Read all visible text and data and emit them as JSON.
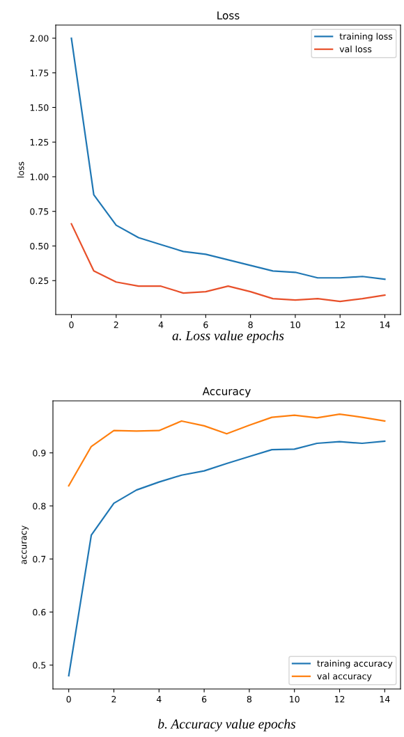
{
  "chart_data": [
    {
      "type": "line",
      "title": "Loss",
      "ylabel": "loss",
      "x": [
        0,
        1,
        2,
        3,
        4,
        5,
        6,
        7,
        8,
        9,
        10,
        11,
        12,
        13,
        14
      ],
      "series": [
        {
          "name": "training loss",
          "color": "#1f77b4",
          "values": [
            2.0,
            0.87,
            0.65,
            0.56,
            0.51,
            0.46,
            0.44,
            0.4,
            0.36,
            0.32,
            0.31,
            0.27,
            0.27,
            0.28,
            0.26
          ]
        },
        {
          "name": "val loss",
          "color": "#e8502a",
          "values": [
            0.66,
            0.32,
            0.24,
            0.21,
            0.21,
            0.16,
            0.17,
            0.21,
            0.17,
            0.12,
            0.11,
            0.12,
            0.1,
            0.12,
            0.145
          ]
        }
      ],
      "xlim": [
        -0.7,
        14.7
      ],
      "xticks": [
        0,
        2,
        4,
        6,
        8,
        10,
        12,
        14
      ],
      "ylim": [
        0.005,
        2.095
      ],
      "yticks": [
        {
          "value": 0.25,
          "label": "0.25"
        },
        {
          "value": 0.5,
          "label": "0.50"
        },
        {
          "value": 0.75,
          "label": "0.75"
        },
        {
          "value": 1.0,
          "label": "1.00"
        },
        {
          "value": 1.25,
          "label": "1.25"
        },
        {
          "value": 1.5,
          "label": "1.50"
        },
        {
          "value": 1.75,
          "label": "1.75"
        },
        {
          "value": 2.0,
          "label": "2.00"
        }
      ],
      "legend": "top right",
      "grid": false,
      "annotations": [
        "a. Loss value epochs"
      ]
    },
    {
      "type": "line",
      "title": "Accuracy",
      "ylabel": "accuracy",
      "x": [
        0,
        1,
        2,
        3,
        4,
        5,
        6,
        7,
        8,
        9,
        10,
        11,
        12,
        13,
        14
      ],
      "series": [
        {
          "name": "training accuracy",
          "color": "#1f77b4",
          "values": [
            0.48,
            0.745,
            0.805,
            0.83,
            0.845,
            0.858,
            0.866,
            0.88,
            0.893,
            0.906,
            0.907,
            0.918,
            0.921,
            0.918,
            0.922
          ]
        },
        {
          "name": "val accuracy",
          "color": "#ff7f0e",
          "values": [
            0.838,
            0.912,
            0.942,
            0.941,
            0.942,
            0.96,
            0.951,
            0.936,
            0.952,
            0.967,
            0.971,
            0.966,
            0.973,
            0.967,
            0.96
          ]
        }
      ],
      "xlim": [
        -0.7,
        14.7
      ],
      "xticks": [
        0,
        2,
        4,
        6,
        8,
        10,
        12,
        14
      ],
      "ylim": [
        0.455,
        0.998
      ],
      "yticks": [
        0.5,
        0.6,
        0.7,
        0.8,
        0.9
      ],
      "legend": "bottom right",
      "grid": false,
      "annotations": [
        "b. Accuracy value epochs"
      ]
    }
  ]
}
